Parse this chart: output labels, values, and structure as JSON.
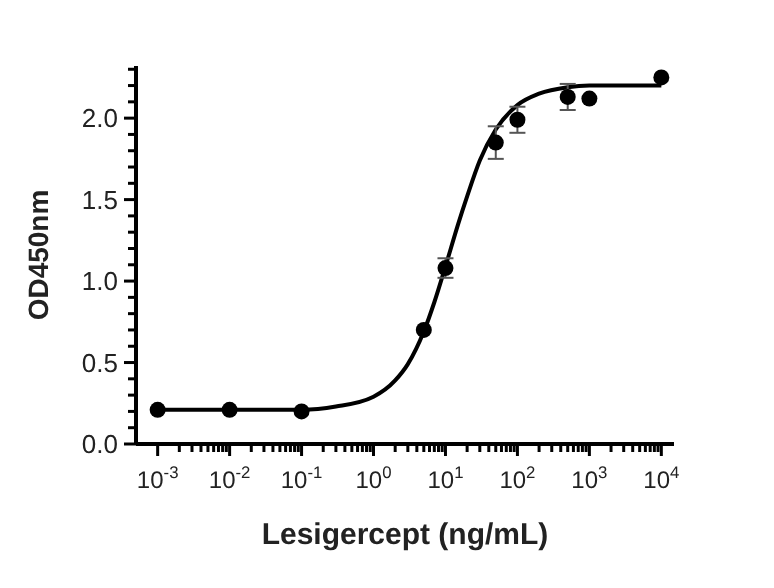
{
  "chart_data": {
    "type": "scatter",
    "xlabel": "Lesigercept (ng/mL)",
    "ylabel": "OD450nm",
    "log": "x",
    "marker": "circle",
    "grid": false,
    "xlim": [
      0.0005,
      15000
    ],
    "ylim": [
      0,
      2.32
    ],
    "xticks": [
      {
        "value": 0.001,
        "label": "10$^{-3}$"
      },
      {
        "value": 0.002,
        "label": null
      },
      {
        "value": 0.003,
        "label": null
      },
      {
        "value": 0.004,
        "label": null
      },
      {
        "value": 0.005,
        "label": null
      },
      {
        "value": 0.006,
        "label": null
      },
      {
        "value": 0.007,
        "label": null
      },
      {
        "value": 0.008,
        "label": null
      },
      {
        "value": 0.009,
        "label": null
      },
      {
        "value": 0.01,
        "label": "10$^{-2}$"
      },
      {
        "value": 0.02,
        "label": null
      },
      {
        "value": 0.03,
        "label": null
      },
      {
        "value": 0.04,
        "label": null
      },
      {
        "value": 0.05,
        "label": null
      },
      {
        "value": 0.06,
        "label": null
      },
      {
        "value": 0.07,
        "label": null
      },
      {
        "value": 0.08,
        "label": null
      },
      {
        "value": 0.09,
        "label": null
      },
      {
        "value": 0.1,
        "label": "10$^{-1}$"
      },
      {
        "value": 0.2,
        "label": null
      },
      {
        "value": 0.3,
        "label": null
      },
      {
        "value": 0.4,
        "label": null
      },
      {
        "value": 0.5,
        "label": null
      },
      {
        "value": 0.6,
        "label": null
      },
      {
        "value": 0.7,
        "label": null
      },
      {
        "value": 0.8,
        "label": null
      },
      {
        "value": 0.9,
        "label": null
      },
      {
        "value": 1,
        "label": "10$^{0}$"
      },
      {
        "value": 2,
        "label": null
      },
      {
        "value": 3,
        "label": null
      },
      {
        "value": 4,
        "label": null
      },
      {
        "value": 5,
        "label": null
      },
      {
        "value": 6,
        "label": null
      },
      {
        "value": 7,
        "label": null
      },
      {
        "value": 8,
        "label": null
      },
      {
        "value": 9,
        "label": null
      },
      {
        "value": 10,
        "label": "10$^{1}$"
      },
      {
        "value": 20,
        "label": null
      },
      {
        "value": 30,
        "label": null
      },
      {
        "value": 40,
        "label": null
      },
      {
        "value": 50,
        "label": null
      },
      {
        "value": 60,
        "label": null
      },
      {
        "value": 70,
        "label": null
      },
      {
        "value": 80,
        "label": null
      },
      {
        "value": 90,
        "label": null
      },
      {
        "value": 100,
        "label": "10$^{2}$"
      },
      {
        "value": 200,
        "label": null
      },
      {
        "value": 300,
        "label": null
      },
      {
        "value": 400,
        "label": null
      },
      {
        "value": 500,
        "label": null
      },
      {
        "value": 600,
        "label": null
      },
      {
        "value": 700,
        "label": null
      },
      {
        "value": 800,
        "label": null
      },
      {
        "value": 900,
        "label": null
      },
      {
        "value": 1000,
        "label": "10$^{3}$"
      },
      {
        "value": 2000,
        "label": null
      },
      {
        "value": 3000,
        "label": null
      },
      {
        "value": 4000,
        "label": null
      },
      {
        "value": 5000,
        "label": null
      },
      {
        "value": 6000,
        "label": null
      },
      {
        "value": 7000,
        "label": null
      },
      {
        "value": 8000,
        "label": null
      },
      {
        "value": 9000,
        "label": null
      },
      {
        "value": 10000,
        "label": "10$^{4}$"
      }
    ],
    "yticks": [
      {
        "value": 0,
        "label": "0.0"
      },
      {
        "value": 0.1,
        "label": null
      },
      {
        "value": 0.2,
        "label": null
      },
      {
        "value": 0.3,
        "label": null
      },
      {
        "value": 0.4,
        "label": null
      },
      {
        "value": 0.5,
        "label": "0.5"
      },
      {
        "value": 0.6,
        "label": null
      },
      {
        "value": 0.7,
        "label": null
      },
      {
        "value": 0.8,
        "label": null
      },
      {
        "value": 0.9,
        "label": null
      },
      {
        "value": 1,
        "label": "1.0"
      },
      {
        "value": 1.1,
        "label": null
      },
      {
        "value": 1.2,
        "label": null
      },
      {
        "value": 1.3,
        "label": null
      },
      {
        "value": 1.4,
        "label": null
      },
      {
        "value": 1.5,
        "label": "1.5"
      },
      {
        "value": 1.6,
        "label": null
      },
      {
        "value": 1.7,
        "label": null
      },
      {
        "value": 1.8,
        "label": null
      },
      {
        "value": 1.9,
        "label": null
      },
      {
        "value": 2,
        "label": "2.0"
      },
      {
        "value": 2.1,
        "label": null
      },
      {
        "value": 2.2,
        "label": null
      },
      {
        "value": 2.3,
        "label": null
      }
    ],
    "series": [
      {
        "type": "line",
        "color": "#000000",
        "marker": "none",
        "x": [
          0.001,
          0.01,
          0.1,
          0.3,
          1,
          2,
          3,
          5,
          7,
          10,
          15,
          20,
          30,
          50,
          100,
          200,
          500,
          1000,
          10000
        ],
        "values": [
          0.21,
          0.21,
          0.21,
          0.23,
          0.29,
          0.39,
          0.49,
          0.69,
          0.87,
          1.09,
          1.35,
          1.52,
          1.74,
          1.93,
          2.08,
          2.15,
          2.19,
          2.2,
          2.2
        ]
      },
      {
        "color": "#000000",
        "x": [
          0.001,
          0.01,
          0.1,
          5,
          10,
          50,
          100,
          500,
          1000,
          10000
        ],
        "values": [
          0.21,
          0.21,
          0.2,
          0.7,
          1.08,
          1.85,
          1.99,
          2.13,
          2.12,
          2.25
        ],
        "errors": [
          null,
          null,
          null,
          null,
          0.06,
          0.1,
          0.08,
          0.08,
          null,
          null
        ]
      }
    ]
  }
}
